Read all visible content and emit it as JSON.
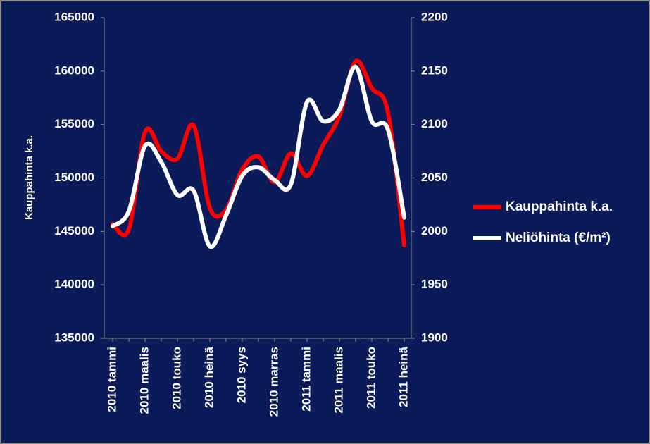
{
  "chart_data": {
    "type": "line",
    "ylabel": "Kauppahinta k.a.",
    "categories": [
      "2010 tammi",
      null,
      "2010 maalis",
      null,
      "2010 touko",
      null,
      "2010 heinä",
      null,
      "2010 syys",
      null,
      "2010 marras",
      null,
      "2011 tammi",
      null,
      "2011 maalis",
      null,
      "2011 touko",
      null,
      "2011 heinä"
    ],
    "series": [
      {
        "name": "Kauppahinta k.a.",
        "color": "#ff0000",
        "axis": "y",
        "values": [
          145700,
          145200,
          154300,
          152500,
          151800,
          154900,
          147200,
          147000,
          150800,
          152000,
          149600,
          152300,
          150200,
          153100,
          155800,
          160900,
          158400,
          156100,
          143700
        ]
      },
      {
        "name": "Neliöhinta (€/m²)",
        "color": "#ffffff",
        "axis": "y2",
        "values": [
          2005,
          2019,
          2080,
          2065,
          2034,
          2038,
          1986,
          2015,
          2052,
          2060,
          2048,
          2044,
          2121,
          2103,
          2114,
          2154,
          2103,
          2095,
          2013
        ]
      }
    ],
    "ylim": [
      135000,
      165000
    ],
    "yticks": [
      135000,
      140000,
      145000,
      150000,
      155000,
      160000,
      165000
    ],
    "y2lim": [
      1900,
      2200
    ],
    "y2ticks": [
      1900,
      1950,
      2000,
      2050,
      2100,
      2150,
      2200
    ],
    "grid": false,
    "legend": "right"
  }
}
